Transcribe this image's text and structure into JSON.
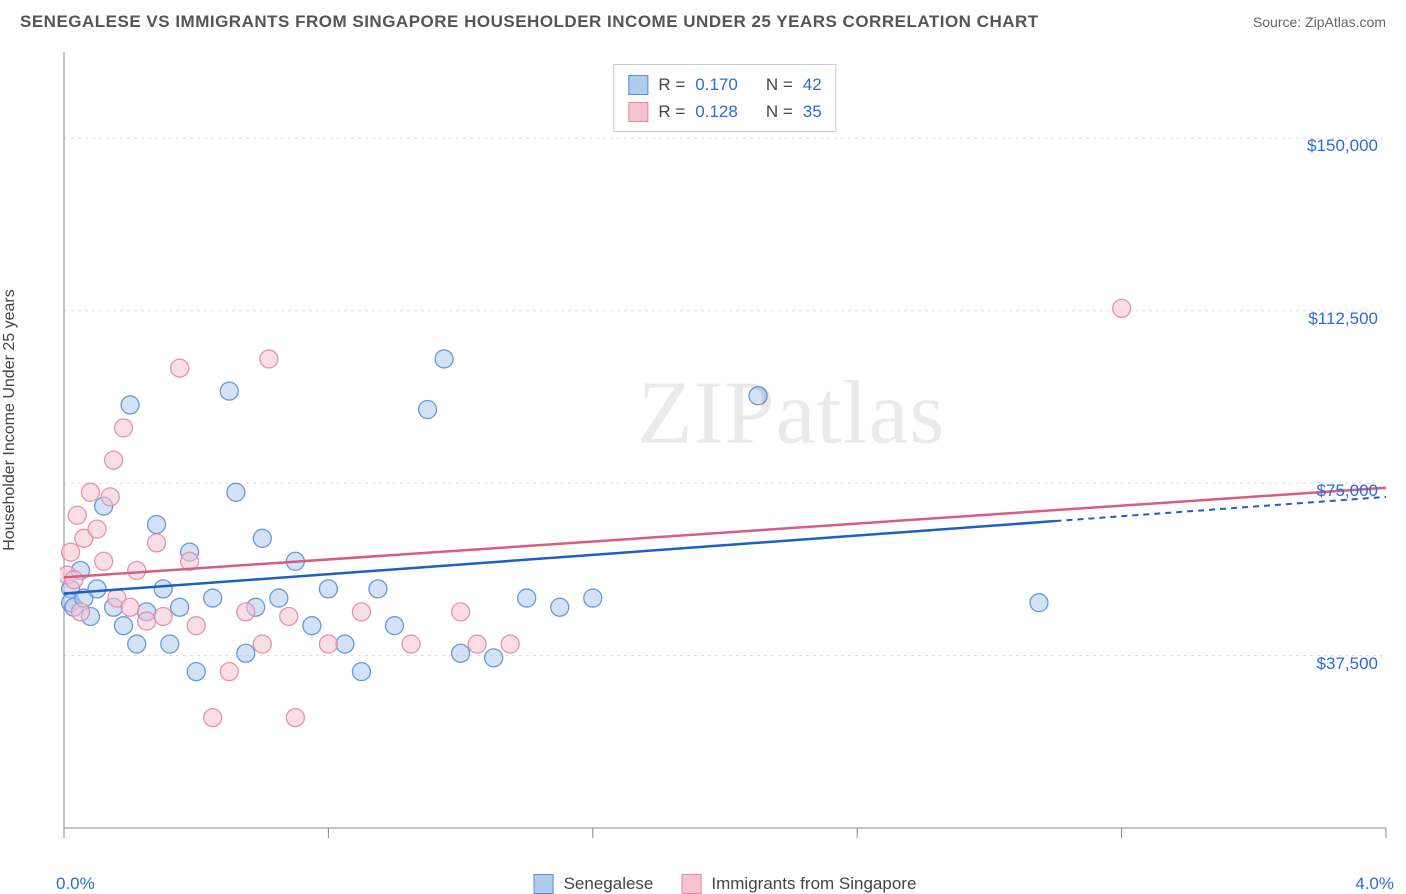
{
  "header": {
    "title": "SENEGALESE VS IMMIGRANTS FROM SINGAPORE HOUSEHOLDER INCOME UNDER 25 YEARS CORRELATION CHART",
    "source": "Source: ZipAtlas.com"
  },
  "watermark": "ZIPatlas",
  "chart": {
    "type": "scatter",
    "y_label": "Householder Income Under 25 years",
    "x_min_label": "0.0%",
    "x_max_label": "4.0%",
    "xlim": [
      0,
      4.0
    ],
    "ylim": [
      0,
      168750
    ],
    "y_ticks": [
      37500,
      75000,
      112500,
      150000
    ],
    "y_tick_labels": [
      "$37,500",
      "$75,000",
      "$112,500",
      "$150,000"
    ],
    "x_ticks": [
      0,
      0.8,
      1.6,
      2.4,
      3.2,
      4.0
    ],
    "grid_color": "#e0e0e0",
    "axis_color": "#888888",
    "background_color": "#ffffff",
    "tick_label_color": "#2a6dd6",
    "marker_radius": 9,
    "marker_opacity": 0.55,
    "legend_top": [
      {
        "swatch_fill": "#aecbf0",
        "swatch_stroke": "#5a8fd6",
        "r_label": "R =",
        "r_value": "0.170",
        "n_label": "N =",
        "n_value": "42"
      },
      {
        "swatch_fill": "#f6c3d1",
        "swatch_stroke": "#e488a4",
        "r_label": "R =",
        "r_value": "0.128",
        "n_label": "N =",
        "n_value": "35"
      }
    ],
    "legend_bottom": [
      {
        "swatch_fill": "#aecbf0",
        "swatch_stroke": "#5a8fd6",
        "label": "Senegalese"
      },
      {
        "swatch_fill": "#f6c3d1",
        "swatch_stroke": "#e488a4",
        "label": "Immigrants from Singapore"
      }
    ],
    "series": [
      {
        "name": "Senegalese",
        "color_fill": "#aecbf0",
        "color_stroke": "#5a8fd6",
        "trend_color": "#1d5fc4",
        "trend_y0": 51000,
        "trend_y1": 72000,
        "points": [
          [
            0.02,
            52000
          ],
          [
            0.02,
            49000
          ],
          [
            0.03,
            48000
          ],
          [
            0.05,
            56000
          ],
          [
            0.06,
            50000
          ],
          [
            0.08,
            46000
          ],
          [
            0.1,
            52000
          ],
          [
            0.12,
            70000
          ],
          [
            0.15,
            48000
          ],
          [
            0.18,
            44000
          ],
          [
            0.2,
            92000
          ],
          [
            0.22,
            40000
          ],
          [
            0.25,
            47000
          ],
          [
            0.28,
            66000
          ],
          [
            0.3,
            52000
          ],
          [
            0.32,
            40000
          ],
          [
            0.35,
            48000
          ],
          [
            0.38,
            60000
          ],
          [
            0.4,
            34000
          ],
          [
            0.45,
            50000
          ],
          [
            0.5,
            95000
          ],
          [
            0.52,
            73000
          ],
          [
            0.55,
            38000
          ],
          [
            0.58,
            48000
          ],
          [
            0.6,
            63000
          ],
          [
            0.65,
            50000
          ],
          [
            0.7,
            58000
          ],
          [
            0.75,
            44000
          ],
          [
            0.8,
            52000
          ],
          [
            0.85,
            40000
          ],
          [
            0.9,
            34000
          ],
          [
            0.95,
            52000
          ],
          [
            1.0,
            44000
          ],
          [
            1.1,
            91000
          ],
          [
            1.15,
            102000
          ],
          [
            1.2,
            38000
          ],
          [
            1.3,
            37000
          ],
          [
            1.4,
            50000
          ],
          [
            1.5,
            48000
          ],
          [
            1.6,
            50000
          ],
          [
            2.1,
            94000
          ],
          [
            2.95,
            49000
          ]
        ]
      },
      {
        "name": "Immigrants from Singapore",
        "color_fill": "#f6c3d1",
        "color_stroke": "#e488a4",
        "trend_color": "#d95b86",
        "trend_y0": 54500,
        "trend_y1": 74000,
        "points": [
          [
            0.01,
            55000
          ],
          [
            0.02,
            60000
          ],
          [
            0.03,
            54000
          ],
          [
            0.04,
            68000
          ],
          [
            0.05,
            47000
          ],
          [
            0.06,
            63000
          ],
          [
            0.08,
            73000
          ],
          [
            0.1,
            65000
          ],
          [
            0.12,
            58000
          ],
          [
            0.14,
            72000
          ],
          [
            0.15,
            80000
          ],
          [
            0.16,
            50000
          ],
          [
            0.18,
            87000
          ],
          [
            0.2,
            48000
          ],
          [
            0.22,
            56000
          ],
          [
            0.25,
            45000
          ],
          [
            0.28,
            62000
          ],
          [
            0.3,
            46000
          ],
          [
            0.35,
            100000
          ],
          [
            0.38,
            58000
          ],
          [
            0.4,
            44000
          ],
          [
            0.45,
            24000
          ],
          [
            0.5,
            34000
          ],
          [
            0.55,
            47000
          ],
          [
            0.6,
            40000
          ],
          [
            0.62,
            102000
          ],
          [
            0.68,
            46000
          ],
          [
            0.7,
            24000
          ],
          [
            0.8,
            40000
          ],
          [
            0.9,
            47000
          ],
          [
            1.05,
            40000
          ],
          [
            1.2,
            47000
          ],
          [
            1.25,
            40000
          ],
          [
            1.35,
            40000
          ],
          [
            3.2,
            113000
          ]
        ]
      }
    ]
  }
}
